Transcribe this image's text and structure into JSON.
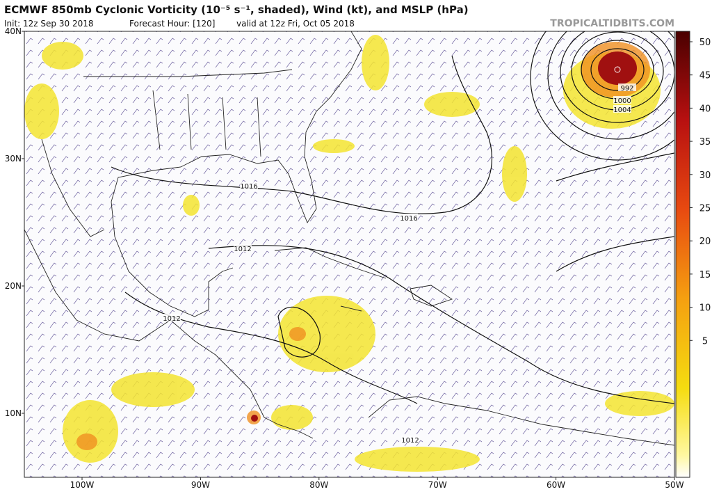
{
  "header": {
    "title": "ECMWF 850mb Cyclonic Vorticity (10⁻⁵ s⁻¹, shaded), Wind (kt), and MSLP (hPa)",
    "init": "Init: 12z Sep 30 2018",
    "forecast_hour": "Forecast Hour: [120]",
    "valid": "valid at 12z Fri, Oct 05 2018",
    "site": "TROPICALTIDBITS.COM"
  },
  "map": {
    "lat_labels": [
      "40N",
      "30N",
      "20N",
      "10N"
    ],
    "lon_labels": [
      "100W",
      "90W",
      "80W",
      "70W",
      "60W",
      "50W"
    ],
    "isobar_labels": [
      "1016",
      "1016",
      "1012",
      "1012",
      "1012",
      "992",
      "1000",
      "1004"
    ]
  },
  "colorbar": {
    "ticks": [
      50,
      45,
      40,
      35,
      30,
      25,
      20,
      15,
      10,
      5
    ]
  }
}
